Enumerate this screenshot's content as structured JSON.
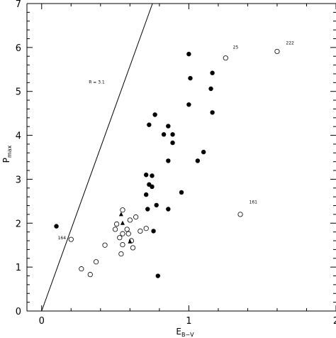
{
  "chart_data": {
    "type": "scatter",
    "xlim": [
      -0.1,
      2.0
    ],
    "ylim": [
      0,
      7
    ],
    "grid": false,
    "xlabel": {
      "main": "E",
      "sub": "B−V"
    },
    "ylabel": {
      "main": "P",
      "sub": "max"
    },
    "xticks": [
      {
        "value": 0,
        "label": "0"
      },
      {
        "value": 1,
        "label": "1"
      },
      {
        "value": 2,
        "label": "2"
      }
    ],
    "yticks": [
      {
        "value": 0,
        "label": "0"
      },
      {
        "value": 1,
        "label": "1"
      },
      {
        "value": 2,
        "label": "2"
      },
      {
        "value": 3,
        "label": "3"
      },
      {
        "value": 4,
        "label": "4"
      },
      {
        "value": 5,
        "label": "5"
      },
      {
        "value": 6,
        "label": "6"
      },
      {
        "value": 7,
        "label": "7"
      }
    ],
    "line": {
      "label": "R = 3.1",
      "label_x": 0.32,
      "label_y": 5.18,
      "slope": 9.3,
      "x": [
        0,
        0.753
      ],
      "y": [
        0,
        7
      ]
    },
    "series": [
      {
        "marker": "filled-circle",
        "points": [
          [
            0.1,
            1.93
          ],
          [
            0.71,
            3.1
          ],
          [
            0.71,
            2.65
          ],
          [
            0.72,
            2.32
          ],
          [
            0.73,
            2.88
          ],
          [
            0.73,
            4.24
          ],
          [
            0.75,
            3.08
          ],
          [
            0.75,
            2.83
          ],
          [
            0.76,
            1.82
          ],
          [
            0.77,
            4.47
          ],
          [
            0.78,
            2.41
          ],
          [
            0.79,
            0.8
          ],
          [
            0.83,
            4.02
          ],
          [
            0.86,
            4.21
          ],
          [
            0.86,
            3.42
          ],
          [
            0.86,
            2.32
          ],
          [
            0.89,
            4.02
          ],
          [
            0.89,
            3.83
          ],
          [
            0.95,
            2.7
          ],
          [
            1.0,
            5.85
          ],
          [
            1.0,
            4.7
          ],
          [
            1.01,
            5.3
          ],
          [
            1.06,
            3.42
          ],
          [
            1.1,
            3.62
          ],
          [
            1.15,
            5.06
          ],
          [
            1.16,
            5.42
          ],
          [
            1.16,
            4.52
          ]
        ]
      },
      {
        "marker": "open-circle",
        "points": [
          [
            0.2,
            1.63
          ],
          [
            0.27,
            0.96
          ],
          [
            0.33,
            0.83
          ],
          [
            0.37,
            1.12
          ],
          [
            0.43,
            1.5
          ],
          [
            0.5,
            1.86
          ],
          [
            0.51,
            1.98
          ],
          [
            0.53,
            1.67
          ],
          [
            0.54,
            1.3
          ],
          [
            0.55,
            2.3
          ],
          [
            0.55,
            1.76
          ],
          [
            0.55,
            1.51
          ],
          [
            0.58,
            1.86
          ],
          [
            0.59,
            1.76
          ],
          [
            0.6,
            2.07
          ],
          [
            0.61,
            1.6
          ],
          [
            0.62,
            1.44
          ],
          [
            0.64,
            2.14
          ],
          [
            0.67,
            1.82
          ],
          [
            0.71,
            1.88
          ],
          [
            1.25,
            5.76
          ],
          [
            1.35,
            2.2
          ],
          [
            1.6,
            5.91
          ]
        ]
      },
      {
        "marker": "filled-triangle",
        "points": [
          [
            0.54,
            2.2
          ],
          [
            0.55,
            2.0
          ],
          [
            0.6,
            1.58
          ]
        ]
      }
    ],
    "annotations": [
      {
        "text": "164",
        "x": 0.11,
        "y": 1.63
      },
      {
        "text": "25",
        "x": 1.3,
        "y": 5.97
      },
      {
        "text": "222",
        "x": 1.66,
        "y": 6.07
      },
      {
        "text": "161",
        "x": 1.41,
        "y": 2.45
      }
    ]
  }
}
